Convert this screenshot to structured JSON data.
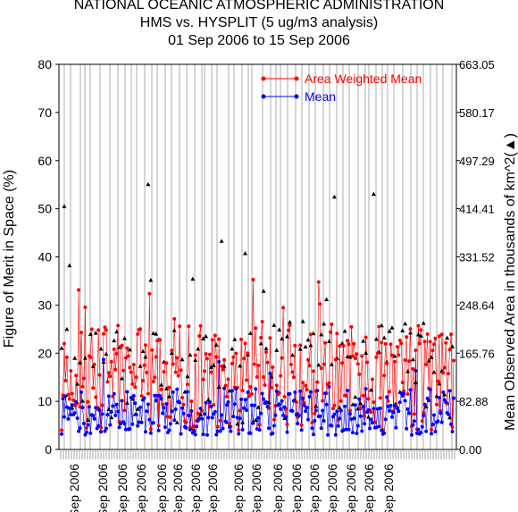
{
  "chart_data": {
    "type": "scatter",
    "title": [
      "NATIONAL OCEANIC ATMOSPHERIC ADMINISTRATION",
      "HMS vs. HYSPLIT (5 ug/m3 analysis)",
      "01 Sep 2006 to 15 Sep 2006"
    ],
    "ylabel_left": "Figure of Merit in Space (%)",
    "ylabel_right": "Mean Observed Area in thousands of km^2",
    "right_marker_symbol": "(▲)",
    "ylim_left": [
      0,
      80
    ],
    "ylim_right": [
      0,
      663.05
    ],
    "yticks_left": [
      "0",
      "10",
      "20",
      "30",
      "40",
      "50",
      "60",
      "70",
      "80"
    ],
    "yticks_right": [
      "0.00",
      "82.88",
      "165.76",
      "248.64",
      "331.52",
      "414.41",
      "497.29",
      "580.17",
      "663.05"
    ],
    "xtick_labels": [
      "Sep 2006",
      "Sep 2006",
      "Sep 2006",
      "Sep 2006",
      "Sep 2006",
      "Sep 2006",
      "Sep 2006",
      "Sep 2006",
      "Sep 2006",
      "Sep 2006",
      "Sep 2006",
      "Sep 2006",
      "Sep 2006",
      "Sep 2006",
      "Sep 2006",
      "Sep 2006",
      "Sep 2006"
    ],
    "n_points": 300,
    "grid": "vertical",
    "legend_position": "top-right",
    "series": [
      {
        "name": "Area Weighted Mean",
        "color": "#ff0000",
        "marker": "circle",
        "line": true
      },
      {
        "name": "Mean",
        "color": "#0000ff",
        "marker": "circle",
        "line": true
      },
      {
        "name": "",
        "color": "#000000",
        "marker": "triangle",
        "line": false,
        "axis": "right"
      }
    ]
  }
}
